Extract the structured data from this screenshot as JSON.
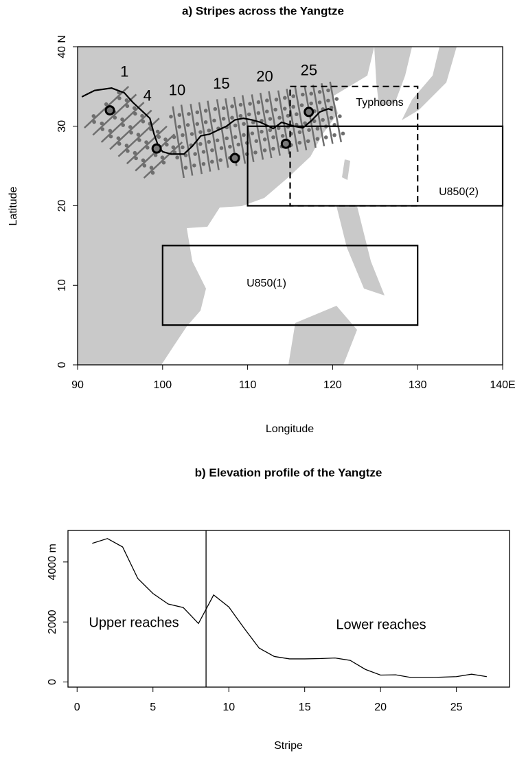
{
  "chart_data": [
    {
      "type": "map",
      "title": "a) Stripes across the Yangtze",
      "x_label": "Longitude",
      "y_label": "Latitude",
      "xlim": [
        90,
        140
      ],
      "ylim": [
        0,
        40
      ],
      "xticks": [
        90,
        100,
        110,
        120,
        130,
        {
          "value": 140,
          "label": "140E"
        }
      ],
      "yticks": [
        0,
        10,
        20,
        30,
        {
          "value": 40,
          "label": "40 N"
        }
      ],
      "stripe_color": "#6e6e6e",
      "stripes": [
        [
          90.8,
          29.8,
          96.0,
          35.0
        ],
        [
          91.8,
          28.9,
          96.9,
          34.0
        ],
        [
          92.8,
          28.0,
          97.8,
          33.0
        ],
        [
          93.8,
          27.1,
          98.7,
          32.0
        ],
        [
          94.8,
          26.2,
          99.6,
          31.0
        ],
        [
          95.8,
          25.3,
          100.5,
          30.0
        ],
        [
          96.8,
          24.4,
          101.4,
          29.0
        ],
        [
          97.8,
          23.5,
          102.3,
          28.0
        ],
        [
          102.5,
          23.5,
          101.2,
          32.5
        ],
        [
          103.5,
          23.8,
          102.2,
          32.7
        ],
        [
          104.6,
          24.0,
          103.3,
          32.8
        ],
        [
          105.6,
          24.3,
          104.3,
          33.0
        ],
        [
          106.6,
          24.5,
          105.3,
          33.2
        ],
        [
          107.7,
          24.8,
          106.4,
          33.4
        ],
        [
          108.7,
          25.0,
          107.4,
          33.5
        ],
        [
          109.7,
          25.3,
          108.4,
          33.7
        ],
        [
          110.7,
          25.5,
          109.4,
          33.9
        ],
        [
          111.8,
          25.8,
          110.5,
          34.0
        ],
        [
          112.8,
          26.0,
          111.5,
          34.2
        ],
        [
          113.8,
          26.3,
          112.5,
          34.4
        ],
        [
          114.9,
          26.5,
          113.6,
          34.5
        ],
        [
          115.9,
          26.8,
          114.6,
          34.7
        ],
        [
          116.9,
          27.0,
          115.6,
          34.9
        ],
        [
          118.0,
          27.3,
          116.7,
          35.1
        ],
        [
          119.0,
          27.5,
          117.7,
          35.2
        ],
        [
          120.0,
          27.8,
          118.7,
          35.4
        ],
        [
          121.0,
          28.0,
          119.7,
          35.6
        ]
      ],
      "stripe_labels": [
        1,
        4,
        10,
        15,
        20,
        25
      ],
      "river": {
        "lon": [
          90.5,
          92,
          94,
          95.5,
          96.5,
          97.5,
          98.5,
          99,
          99.5,
          100,
          101,
          102.5,
          103.5,
          104.5,
          105.5,
          106.5,
          107.5,
          108.5,
          109.5,
          110.5,
          111.5,
          112.5,
          113,
          114,
          115.5,
          116.5,
          117.5,
          118.5,
          119.5,
          120
        ],
        "lat": [
          33.7,
          34.5,
          34.8,
          34.2,
          33,
          32,
          31,
          29,
          27.5,
          26.8,
          26.5,
          26.5,
          27.5,
          28.8,
          29,
          29.5,
          30,
          30.8,
          31,
          30.8,
          30.5,
          30,
          29.7,
          30.5,
          30,
          29.8,
          30.7,
          31.8,
          32.2,
          32
        ]
      },
      "stations": {
        "lon": [
          93.8,
          99.3,
          108.5,
          114.5,
          117.2
        ],
        "lat": [
          32,
          27.2,
          26,
          27.8,
          31.8
        ]
      },
      "regions": [
        {
          "label": "Typhoons",
          "lon": [
            115,
            130
          ],
          "lat": [
            20,
            35
          ],
          "dashed": true
        },
        {
          "label": "U850(2)",
          "lon": [
            110,
            140
          ],
          "lat": [
            20,
            30
          ],
          "dashed": false
        },
        {
          "label": "U850(1)",
          "lon": [
            100,
            130
          ],
          "lat": [
            5,
            15
          ],
          "dashed": false
        }
      ]
    },
    {
      "type": "line",
      "title": "b) Elevation profile of the Yangtze",
      "x_label": "Stripe",
      "x": [
        1,
        2,
        3,
        4,
        5,
        6,
        7,
        8,
        9,
        10,
        11,
        12,
        13,
        14,
        15,
        16,
        17,
        18,
        19,
        20,
        21,
        22,
        23,
        24,
        25,
        26,
        27
      ],
      "values": [
        4620,
        4780,
        4500,
        3450,
        2950,
        2600,
        2480,
        1950,
        2900,
        2500,
        1800,
        1130,
        850,
        770,
        770,
        780,
        800,
        720,
        420,
        230,
        240,
        150,
        150,
        160,
        180,
        260,
        180
      ],
      "color": "#000000",
      "xlim": [
        -0.6,
        28.5
      ],
      "ylim": [
        -170,
        5050
      ],
      "xticks": [
        0,
        5,
        10,
        15,
        20,
        25
      ],
      "yticks": [
        0,
        2000,
        {
          "value": 4000,
          "label": "4000 m"
        }
      ],
      "divider": 8.5,
      "annotations": [
        "Upper reaches",
        "Lower reaches"
      ]
    }
  ]
}
